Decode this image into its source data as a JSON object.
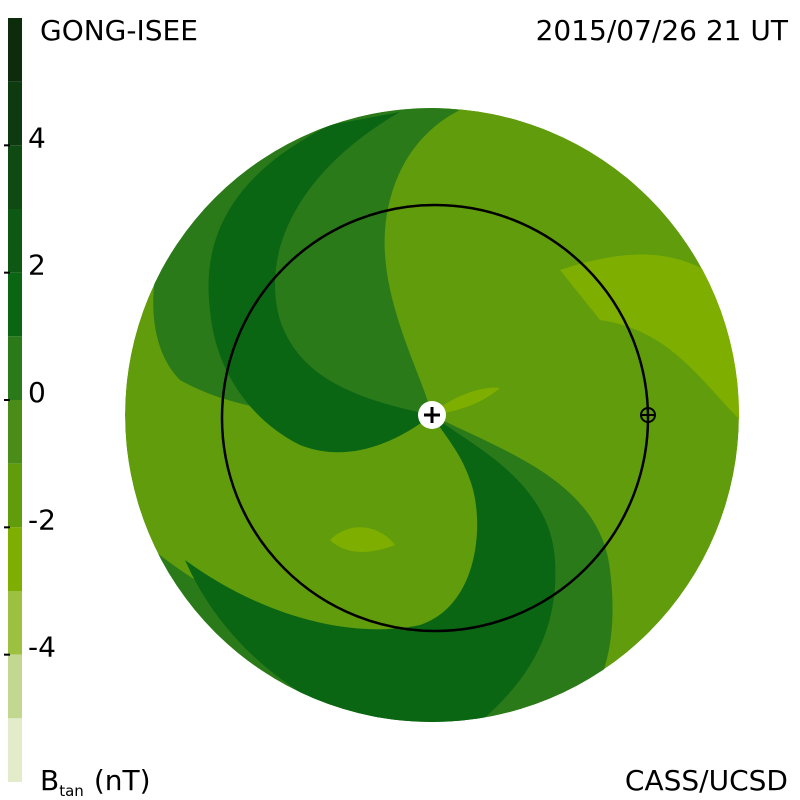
{
  "chart_data": {
    "type": "contour-disk",
    "source_label": "GONG-ISEE",
    "date_label": "2015/07/26 21 UT",
    "credit_label": "CASS/UCSD",
    "colorbar_label": "B",
    "colorbar_label_sub": "tan",
    "colorbar_unit": "(nT)",
    "colorbar": {
      "lim": [
        -6,
        6
      ],
      "ticks": [
        4,
        2,
        0,
        -2,
        -4
      ],
      "levels": [
        6,
        5,
        4,
        3,
        2,
        1,
        0,
        -1,
        -2,
        -3,
        -4,
        -5,
        -6
      ],
      "colors": [
        "#0c2c0c",
        "#0e3a0f",
        "#0f4a12",
        "#0d5812",
        "#0b6614",
        "#2a7a1a",
        "#4a8c18",
        "#609c0c",
        "#7eae00",
        "#9cc040",
        "#c2d890",
        "#e2ecca"
      ]
    }
  }
}
